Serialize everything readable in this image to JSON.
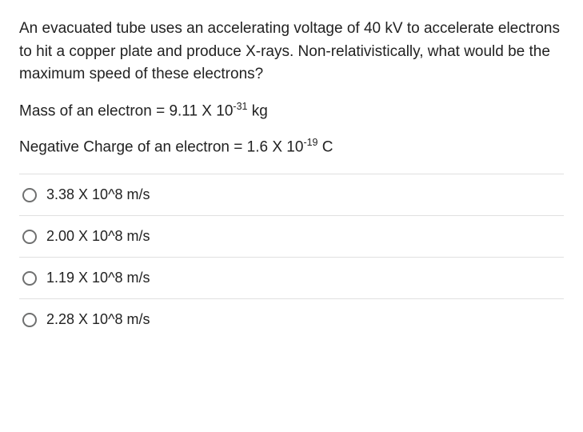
{
  "question": {
    "paragraph_html": "An evacuated tube uses an accelerating voltage of 40 kV to accelerate electrons to hit a copper plate and produce X-rays. Non-relativistically, what would be the maximum speed of these electrons?",
    "mass_line_html": "Mass of an electron = 9.11 X 10<sup>-31</sup> kg",
    "charge_line_html": "Negative Charge of an electron = 1.6 X 10<sup>-19</sup> C",
    "text_color": "#222222",
    "fontsize": 19
  },
  "options": [
    {
      "label": "3.38 X 10^8 m/s",
      "selected": false
    },
    {
      "label": "2.00 X 10^8 m/s",
      "selected": false
    },
    {
      "label": "1.19 X 10^8 m/s",
      "selected": false
    },
    {
      "label": "2.28 X 10^8 m/s",
      "selected": false
    }
  ],
  "style": {
    "background_color": "#ffffff",
    "divider_color": "#e0e0e0",
    "radio_border_color": "#6f7070",
    "option_fontsize": 18
  }
}
